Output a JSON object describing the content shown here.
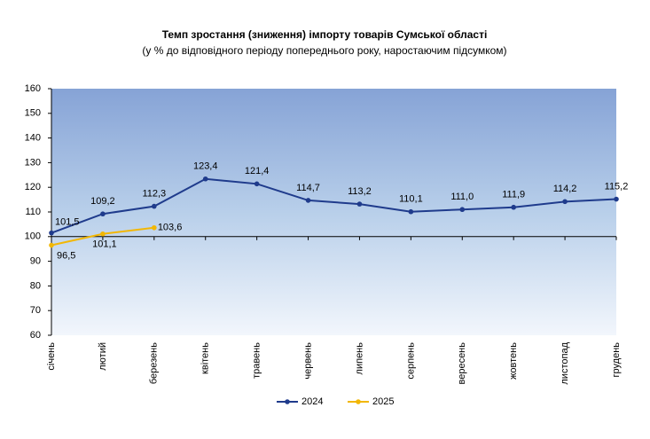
{
  "chart_data": {
    "type": "line",
    "title": "Темп зростання (зниження) імпорту товарів Сумської області",
    "subtitle": "(у % до відповідного періоду попереднього року, наростаючим підсумком)",
    "categories": [
      "січень",
      "лютий",
      "березень",
      "квітень",
      "травень",
      "червень",
      "липень",
      "серпень",
      "вересень",
      "жовтень",
      "листопад",
      "грудень"
    ],
    "series": [
      {
        "name": "2024",
        "color": "#1f3b8c",
        "values": [
          101.5,
          109.2,
          112.3,
          123.4,
          121.4,
          114.7,
          113.2,
          110.1,
          111.0,
          111.9,
          114.2,
          115.2
        ],
        "value_labels": [
          "101,5",
          "109,2",
          "112,3",
          "123,4",
          "121,4",
          "114,7",
          "113,2",
          "110,1",
          "111,0",
          "111,9",
          "114,2",
          "115,2"
        ]
      },
      {
        "name": "2025",
        "color": "#f2b705",
        "values": [
          96.5,
          101.1,
          103.6,
          null,
          null,
          null,
          null,
          null,
          null,
          null,
          null,
          null
        ],
        "value_labels": [
          "96,5",
          "101,1",
          "103,6",
          null,
          null,
          null,
          null,
          null,
          null,
          null,
          null,
          null
        ]
      }
    ],
    "ylim": [
      60,
      160
    ],
    "yticks": [
      60,
      70,
      80,
      90,
      100,
      110,
      120,
      130,
      140,
      150,
      160
    ],
    "xaxis_crosses": 100,
    "legend": "bottom"
  }
}
